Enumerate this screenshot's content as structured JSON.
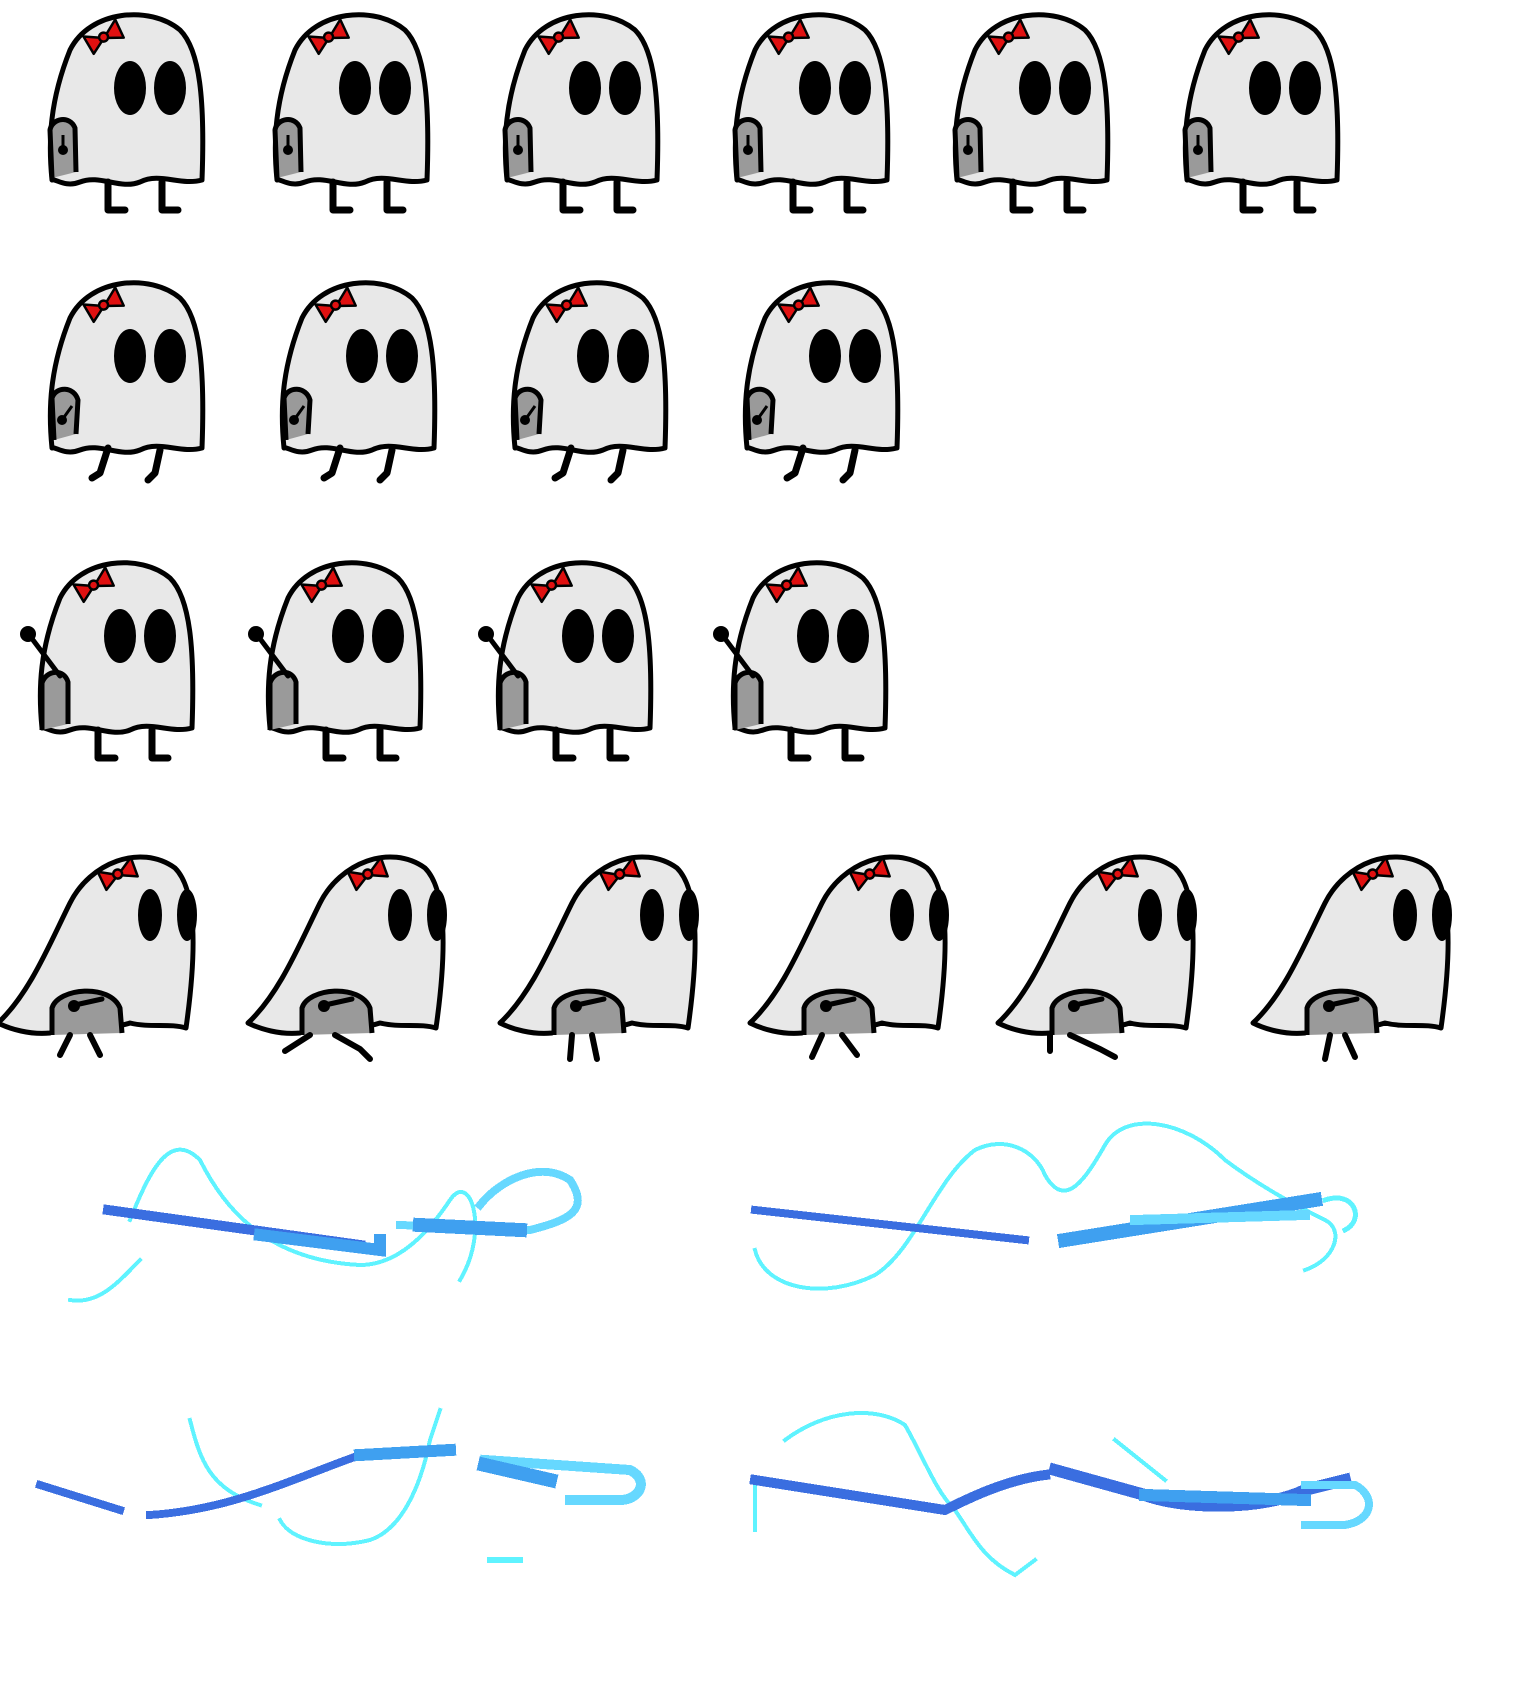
{
  "sheet": {
    "background": "#ffffff",
    "rows": [
      {
        "name": "idle",
        "frames": 6,
        "pose": "stand"
      },
      {
        "name": "walk",
        "frames": 4,
        "pose": "walk"
      },
      {
        "name": "raise-arm",
        "frames": 4,
        "pose": "arm"
      },
      {
        "name": "dash",
        "frames": 6,
        "pose": "dash"
      }
    ],
    "effects": {
      "name": "water-swoosh",
      "frames": 4,
      "colors": {
        "light": "#5ff3ff",
        "mid": "#3fa0f0",
        "dark": "#3a6ee0",
        "bright": "#66d8ff"
      }
    },
    "colors": {
      "body": "#e8e8e8",
      "outline": "#000000",
      "bow": "#e01010",
      "tombstone": "#9a9a9a",
      "eyes": "#000000"
    }
  }
}
